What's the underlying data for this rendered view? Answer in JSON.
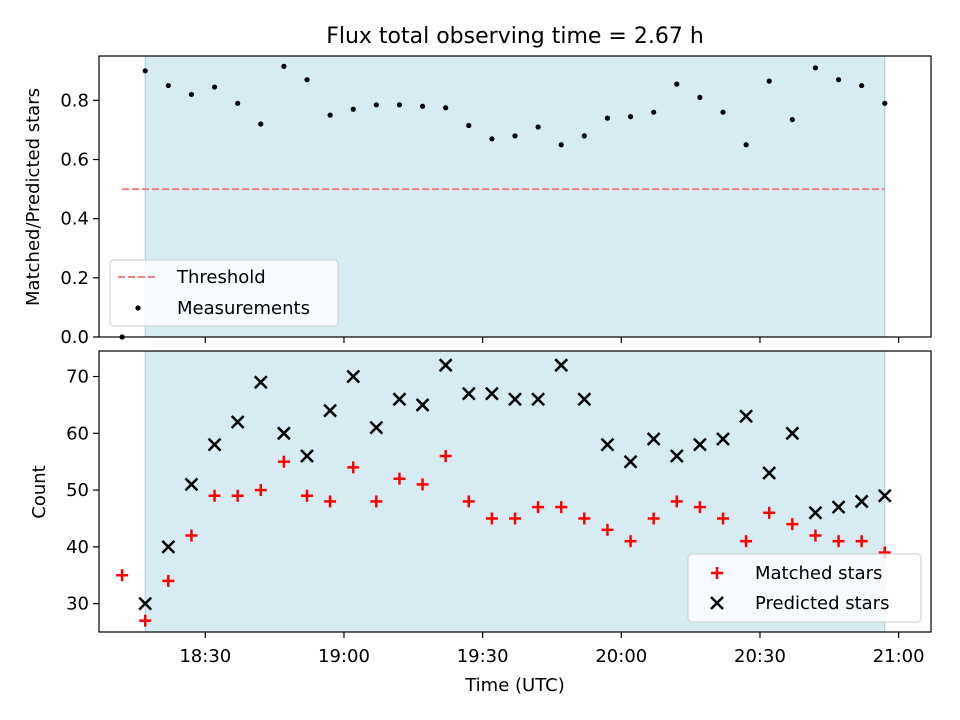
{
  "chart_data": [
    {
      "type": "scatter",
      "title": "Flux total observing time = 2.67 h",
      "xlabel": "",
      "ylabel": "Matched/Predicted stars",
      "ylim": [
        0.0,
        0.95
      ],
      "yticks": [
        0.0,
        0.2,
        0.4,
        0.6,
        0.8
      ],
      "ytick_labels": [
        "0.0",
        "0.2",
        "0.4",
        "0.6",
        "0.8"
      ],
      "observing_window": {
        "start": "18:17",
        "end": "20:57",
        "color": "#add8e6"
      },
      "threshold": {
        "name": "Threshold",
        "value": 0.5,
        "start": "18:12",
        "end": "20:57",
        "color": "#f08080"
      },
      "legend": {
        "placement": "lower-left",
        "entries": [
          "Threshold",
          "Measurements"
        ]
      },
      "series": [
        {
          "name": "Measurements",
          "marker": "dot",
          "color": "#000000",
          "x": [
            "18:12",
            "18:17",
            "18:22",
            "18:27",
            "18:32",
            "18:37",
            "18:42",
            "18:47",
            "18:52",
            "18:57",
            "19:02",
            "19:07",
            "19:12",
            "19:17",
            "19:22",
            "19:27",
            "19:32",
            "19:37",
            "19:42",
            "19:47",
            "19:52",
            "19:57",
            "20:02",
            "20:07",
            "20:12",
            "20:17",
            "20:22",
            "20:27",
            "20:32",
            "20:37",
            "20:42",
            "20:47",
            "20:52",
            "20:57"
          ],
          "values": [
            0.0,
            0.9,
            0.85,
            0.82,
            0.845,
            0.79,
            0.72,
            0.915,
            0.87,
            0.75,
            0.77,
            0.785,
            0.785,
            0.78,
            0.775,
            0.715,
            0.67,
            0.68,
            0.71,
            0.65,
            0.68,
            0.74,
            0.745,
            0.76,
            0.855,
            0.81,
            0.76,
            0.65,
            0.865,
            0.735,
            0.91,
            0.87,
            0.85,
            0.79
          ]
        }
      ]
    },
    {
      "type": "scatter",
      "title": "",
      "xlabel": "Time (UTC)",
      "ylabel": "Count",
      "ylim": [
        25,
        74.5
      ],
      "yticks": [
        30,
        40,
        50,
        60,
        70
      ],
      "ytick_labels": [
        "30",
        "40",
        "50",
        "60",
        "70"
      ],
      "xticks": [
        "18:30",
        "19:00",
        "19:30",
        "20:00",
        "20:30",
        "21:00"
      ],
      "xlim": [
        "18:07",
        "21:07"
      ],
      "legend": {
        "placement": "lower-right",
        "entries": [
          "Matched stars",
          "Predicted stars"
        ]
      },
      "series": [
        {
          "name": "Matched stars",
          "marker": "plus",
          "color": "#ff0000",
          "x": [
            "18:12",
            "18:17",
            "18:22",
            "18:27",
            "18:32",
            "18:37",
            "18:42",
            "18:47",
            "18:52",
            "18:57",
            "19:02",
            "19:07",
            "19:12",
            "19:17",
            "19:22",
            "19:27",
            "19:32",
            "19:37",
            "19:42",
            "19:47",
            "19:52",
            "19:57",
            "20:02",
            "20:07",
            "20:12",
            "20:17",
            "20:22",
            "20:27",
            "20:32",
            "20:37",
            "20:42",
            "20:47",
            "20:52",
            "20:57"
          ],
          "values": [
            35,
            27,
            34,
            42,
            49,
            49,
            50,
            55,
            49,
            48,
            54,
            48,
            52,
            51,
            56,
            48,
            45,
            45,
            47,
            47,
            45,
            43,
            41,
            45,
            48,
            47,
            45,
            41,
            46,
            44,
            42,
            41,
            41,
            39
          ]
        },
        {
          "name": "Predicted stars",
          "marker": "x",
          "color": "#000000",
          "x": [
            "18:17",
            "18:22",
            "18:27",
            "18:32",
            "18:37",
            "18:42",
            "18:47",
            "18:52",
            "18:57",
            "19:02",
            "19:07",
            "19:12",
            "19:17",
            "19:22",
            "19:27",
            "19:32",
            "19:37",
            "19:42",
            "19:47",
            "19:52",
            "19:57",
            "20:02",
            "20:07",
            "20:12",
            "20:17",
            "20:22",
            "20:27",
            "20:32",
            "20:37",
            "20:42",
            "20:47",
            "20:52",
            "20:57"
          ],
          "values": [
            30,
            40,
            51,
            58,
            62,
            69,
            60,
            56,
            64,
            70,
            61,
            66,
            65,
            72,
            67,
            67,
            66,
            66,
            72,
            66,
            58,
            55,
            59,
            56,
            58,
            59,
            63,
            53,
            60,
            46,
            47,
            48,
            49
          ]
        }
      ]
    }
  ]
}
